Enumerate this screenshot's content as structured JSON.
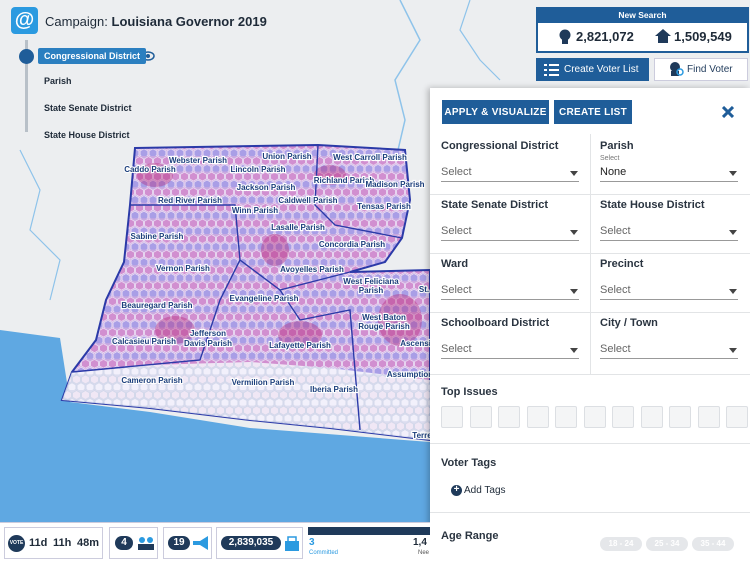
{
  "header": {
    "label": "Campaign:",
    "campaign": "Louisiana Governor 2019"
  },
  "layers": [
    "Congressional District",
    "Parish",
    "State Senate District",
    "State House District"
  ],
  "stats": {
    "title": "New Search",
    "voters": "2,821,072",
    "households": "1,509,549"
  },
  "actions": [
    "Create Voter List",
    "Find Voter"
  ],
  "panel": {
    "buttons": [
      "APPLY & VISUALIZE",
      "CREATE LIST"
    ],
    "filters": [
      {
        "label": "Congressional District",
        "value": "Select"
      },
      {
        "label": "Parish",
        "hint": "Select",
        "value": "None"
      },
      {
        "label": "State Senate District",
        "value": "Select"
      },
      {
        "label": "State House District",
        "value": "Select"
      },
      {
        "label": "Ward",
        "value": "Select"
      },
      {
        "label": "Precinct",
        "value": "Select"
      },
      {
        "label": "Schoolboard District",
        "value": "Select"
      },
      {
        "label": "City / Town",
        "value": "Select"
      }
    ],
    "top_issues": "Top Issues",
    "voter_tags": "Voter Tags",
    "add_tags": "Add Tags",
    "age_range": "Age Range",
    "ages": [
      "18 - 24",
      "25 - 34",
      "35 - 44"
    ]
  },
  "map_labels": [
    "Caddo Parish",
    "Webster Parish",
    "Union Parish",
    "West Carroll Parish",
    "Lincoln Parish",
    "Richland Parish",
    "Madison Parish",
    "Jackson Parish",
    "Red River Parish",
    "Caldwell Parish",
    "Tensas Parish",
    "Winn Parish",
    "Sabine Parish",
    "Lasalle Parish",
    "Concordia Parish",
    "Vernon Parish",
    "Avoyelles Parish",
    "West Feliciana",
    "Parish",
    "Beauregard Parish",
    "Evangeline Parish",
    "West Baton",
    "Rouge Parish",
    "Calcasieu Parish",
    "Jefferson",
    "Davis Parish",
    "Lafayette Parish",
    "Ascensio",
    "Cameron Parish",
    "Vermilion Parish",
    "Iberia Parish",
    "Assumption",
    "Terre",
    "St."
  ],
  "footer": {
    "days": "11d",
    "hours": "11h",
    "minutes": "48m",
    "volunteers": "4",
    "messages": "19",
    "contacts": "2,839,035",
    "committed": "3",
    "committed_label": "Committed",
    "needed": "1,4",
    "needed_label": "Nee"
  }
}
